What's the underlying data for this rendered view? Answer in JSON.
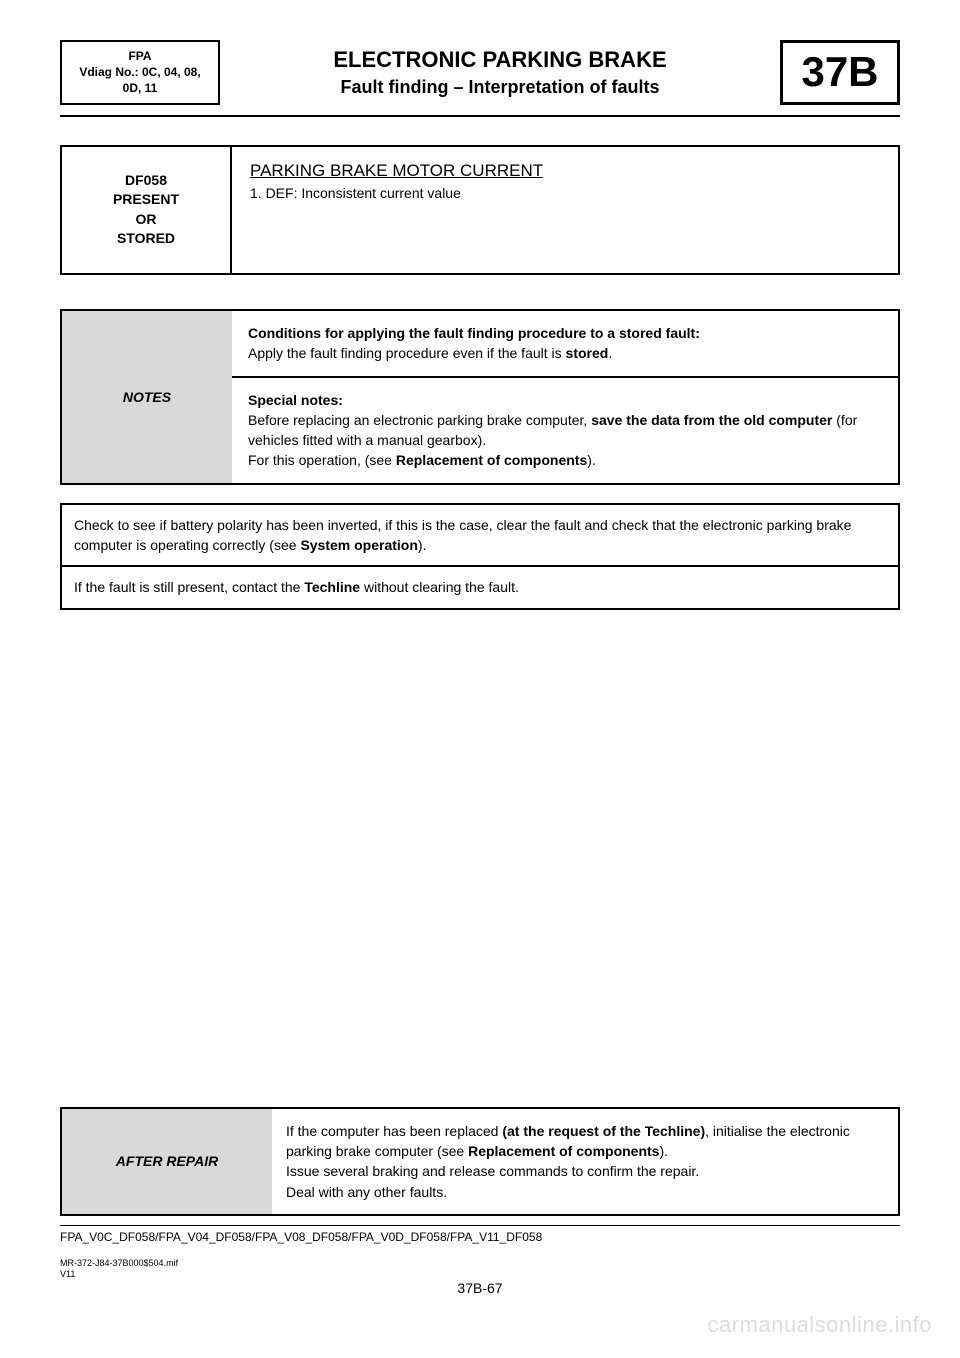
{
  "header": {
    "left_l1": "FPA",
    "left_l2": "Vdiag No.: 0C, 04, 08,",
    "left_l3": "0D, 11",
    "title1": "ELECTRONIC PARKING BRAKE",
    "title2": "Fault finding – Interpretation of faults",
    "code": "37B"
  },
  "fault": {
    "code_l1": "DF058",
    "code_l2": "PRESENT",
    "code_l3": "OR",
    "code_l4": "STORED",
    "title": "PARKING BRAKE MOTOR CURRENT",
    "def": "1. DEF: Inconsistent current value"
  },
  "notes": {
    "label": "NOTES",
    "row1_b": "Conditions for applying the fault finding procedure to a stored fault:",
    "row1_t": "Apply the fault finding procedure even if the fault is ",
    "row1_t_b": "stored",
    "row1_t_end": ".",
    "row2_b": "Special notes:",
    "row2_t1": "Before replacing an electronic parking brake computer, ",
    "row2_t1_b": "save the data from the old computer",
    "row2_t1_end": " (for vehicles fitted with a manual gearbox).",
    "row2_t2": "For this operation, (see ",
    "row2_t2_b": "Replacement of components",
    "row2_t2_end": ")."
  },
  "instr": {
    "r1a": "Check to see if battery polarity has been inverted, if this is the case, clear the fault and check that the electronic parking brake computer is operating correctly (see ",
    "r1b": "System operation",
    "r1c": ").",
    "r2a": "If the fault is still present, contact the ",
    "r2b": "Techline",
    "r2c": " without clearing the fault."
  },
  "after": {
    "label": "AFTER REPAIR",
    "l1a": "If the computer has been replaced ",
    "l1b": "(at the request of the Techline)",
    "l1c": ", initialise the electronic parking brake computer (see ",
    "l1d": "Replacement of components",
    "l1e": ").",
    "l2": "Issue several braking and release commands to confirm the repair.",
    "l3": "Deal with any other faults."
  },
  "footer": {
    "code": "FPA_V0C_DF058/FPA_V04_DF058/FPA_V08_DF058/FPA_V0D_DF058/FPA_V11_DF058",
    "meta1": "MR-372-J84-37B000$504.mif",
    "meta2": "V11",
    "page": "37B-67"
  },
  "watermark": "carmanualsonline.info",
  "colors": {
    "grey": "#d9d9d9",
    "wm": "#dddddd"
  }
}
